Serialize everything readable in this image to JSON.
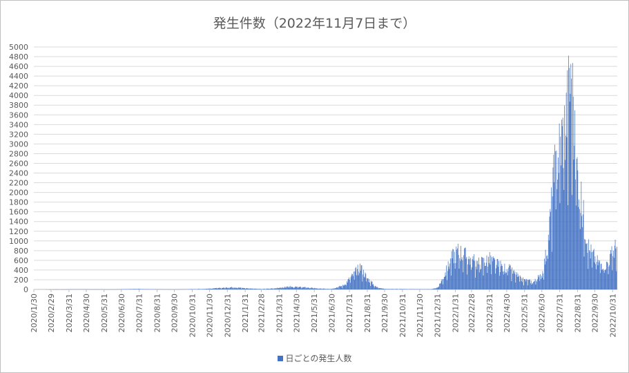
{
  "chart_data": {
    "type": "bar",
    "title": "発生件数（2022年11月7日まで）",
    "xlabel": "",
    "ylabel": "",
    "ylim": [
      0,
      5000
    ],
    "ytick_step": 200,
    "grid": true,
    "legend_position": "bottom",
    "x_tick_labels": [
      "2020/1/30",
      "2020/2/29",
      "2020/3/31",
      "2020/4/30",
      "2020/5/31",
      "2020/6/30",
      "2020/7/31",
      "2020/8/31",
      "2020/9/30",
      "2020/10/31",
      "2020/11/30",
      "2020/12/31",
      "2021/1/31",
      "2021/2/28",
      "2021/3/31",
      "2021/4/30",
      "2021/5/31",
      "2021/6/30",
      "2021/7/31",
      "2021/8/31",
      "2021/9/30",
      "2021/10/31",
      "2021/11/30",
      "2021/12/31",
      "2022/1/31",
      "2022/2/28",
      "2022/3/31",
      "2022/4/30",
      "2022/5/31",
      "2022/6/30",
      "2022/7/31",
      "2022/8/31",
      "2022/9/30",
      "2022/10/31"
    ],
    "series": [
      {
        "name": "日ごとの発生人数",
        "color": "#4472c4",
        "x_start": "2020/1/30",
        "x_end": "2022/11/7",
        "control_points": [
          [
            "2020/1/30",
            0
          ],
          [
            "2020/3/20",
            1
          ],
          [
            "2020/4/15",
            4
          ],
          [
            "2020/6/15",
            1
          ],
          [
            "2020/7/25",
            10
          ],
          [
            "2020/8/10",
            6
          ],
          [
            "2020/9/30",
            2
          ],
          [
            "2020/11/20",
            10
          ],
          [
            "2020/12/20",
            30
          ],
          [
            "2021/1/10",
            45
          ],
          [
            "2021/1/31",
            25
          ],
          [
            "2021/2/28",
            8
          ],
          [
            "2021/3/20",
            20
          ],
          [
            "2021/4/20",
            55
          ],
          [
            "2021/5/15",
            40
          ],
          [
            "2021/6/10",
            15
          ],
          [
            "2021/6/30",
            12
          ],
          [
            "2021/7/20",
            80
          ],
          [
            "2021/8/5",
            280
          ],
          [
            "2021/8/18",
            460
          ],
          [
            "2021/8/31",
            220
          ],
          [
            "2021/9/15",
            50
          ],
          [
            "2021/9/30",
            10
          ],
          [
            "2021/12/20",
            5
          ],
          [
            "2021/12/31",
            40
          ],
          [
            "2022/1/10",
            250
          ],
          [
            "2022/1/25",
            650
          ],
          [
            "2022/2/5",
            780
          ],
          [
            "2022/2/20",
            650
          ],
          [
            "2022/3/10",
            520
          ],
          [
            "2022/3/31",
            600
          ],
          [
            "2022/4/15",
            480
          ],
          [
            "2022/5/5",
            400
          ],
          [
            "2022/5/25",
            200
          ],
          [
            "2022/6/15",
            150
          ],
          [
            "2022/6/30",
            300
          ],
          [
            "2022/7/10",
            900
          ],
          [
            "2022/7/20",
            2200
          ],
          [
            "2022/7/31",
            2900
          ],
          [
            "2022/8/10",
            3400
          ],
          [
            "2022/8/17",
            4100
          ],
          [
            "2022/8/25",
            3000
          ],
          [
            "2022/9/5",
            1800
          ],
          [
            "2022/9/20",
            800
          ],
          [
            "2022/10/5",
            550
          ],
          [
            "2022/10/20",
            500
          ],
          [
            "2022/11/7",
            900
          ]
        ],
        "peak_values": [
          [
            "2021/8/20",
            500
          ],
          [
            "2022/8/19",
            4650
          ],
          [
            "2022/8/22",
            4670
          ]
        ]
      }
    ]
  }
}
